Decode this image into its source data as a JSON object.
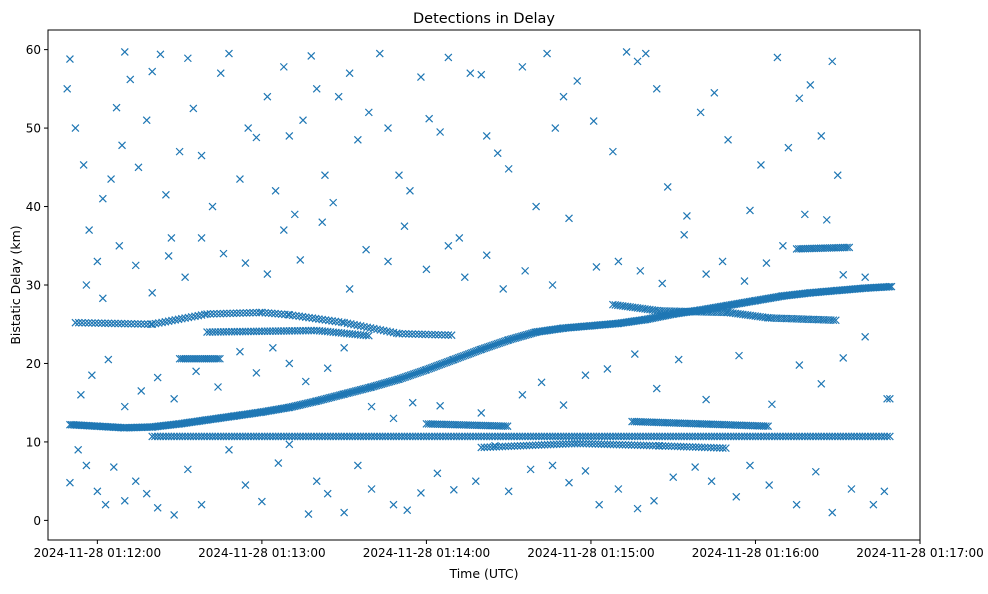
{
  "chart_data": {
    "type": "scatter",
    "title": "Detections in Delay",
    "xlabel": "Time (UTC)",
    "ylabel": "Bistatic Delay (km)",
    "x_units": "seconds after 2024-11-28 01:12:00",
    "xlim": [
      -18,
      300
    ],
    "ylim": [
      -2.5,
      62.5
    ],
    "marker": "x",
    "color": "#1f77b4",
    "grid": false,
    "xticks": [
      {
        "value": 0,
        "label": "2024-11-28 01:12:00"
      },
      {
        "value": 60,
        "label": "2024-11-28 01:13:00"
      },
      {
        "value": 120,
        "label": "2024-11-28 01:14:00"
      },
      {
        "value": 180,
        "label": "2024-11-28 01:15:00"
      },
      {
        "value": 240,
        "label": "2024-11-28 01:16:00"
      },
      {
        "value": 300,
        "label": "2024-11-28 01:17:00"
      }
    ],
    "yticks": [
      0,
      10,
      20,
      30,
      40,
      50,
      60
    ],
    "tracks": [
      {
        "name": "rising-track",
        "step": 0.6,
        "points": [
          [
            -10,
            12.2
          ],
          [
            0,
            12
          ],
          [
            10,
            11.8
          ],
          [
            20,
            11.9
          ],
          [
            30,
            12.3
          ],
          [
            40,
            12.8
          ],
          [
            50,
            13.3
          ],
          [
            60,
            13.8
          ],
          [
            70,
            14.4
          ],
          [
            80,
            15.2
          ],
          [
            90,
            16.1
          ],
          [
            100,
            17
          ],
          [
            110,
            18
          ],
          [
            120,
            19.2
          ],
          [
            130,
            20.5
          ],
          [
            140,
            21.8
          ],
          [
            150,
            23
          ],
          [
            160,
            24
          ],
          [
            170,
            24.5
          ],
          [
            180,
            24.8
          ],
          [
            190,
            25.1
          ],
          [
            200,
            25.6
          ],
          [
            210,
            26.3
          ],
          [
            220,
            26.8
          ],
          [
            230,
            27.4
          ],
          [
            240,
            28
          ],
          [
            250,
            28.6
          ],
          [
            260,
            29
          ],
          [
            270,
            29.3
          ],
          [
            280,
            29.6
          ],
          [
            290,
            29.8
          ]
        ]
      },
      {
        "name": "track-25km",
        "step": 1.2,
        "points": [
          [
            -8,
            25.2
          ],
          [
            20,
            25
          ],
          [
            40,
            26.3
          ],
          [
            60,
            26.5
          ],
          [
            70,
            26.2
          ],
          [
            90,
            25.2
          ],
          [
            110,
            23.8
          ],
          [
            130,
            23.6
          ]
        ]
      },
      {
        "name": "track-10.7km",
        "step": 1.0,
        "points": [
          [
            20,
            10.7
          ],
          [
            290,
            10.7
          ]
        ]
      },
      {
        "name": "track-12km-a",
        "step": 0.8,
        "points": [
          [
            120,
            12.3
          ],
          [
            150,
            12
          ]
        ]
      },
      {
        "name": "track-12km-b",
        "step": 0.8,
        "points": [
          [
            195,
            12.6
          ],
          [
            245,
            12
          ]
        ]
      },
      {
        "name": "track-26km-late",
        "step": 0.9,
        "points": [
          [
            188,
            27.5
          ],
          [
            205,
            26.7
          ],
          [
            230,
            26.5
          ],
          [
            245,
            25.8
          ],
          [
            270,
            25.5
          ]
        ]
      },
      {
        "name": "track-24km-mid",
        "step": 1.0,
        "points": [
          [
            40,
            24
          ],
          [
            80,
            24.2
          ],
          [
            100,
            23.5
          ]
        ]
      },
      {
        "name": "track-20.5km",
        "step": 0.7,
        "points": [
          [
            30,
            20.6
          ],
          [
            45,
            20.6
          ]
        ]
      },
      {
        "name": "track-34.6km",
        "step": 0.8,
        "points": [
          [
            255,
            34.6
          ],
          [
            275,
            34.8
          ]
        ]
      },
      {
        "name": "track-9.5km",
        "step": 1.1,
        "points": [
          [
            140,
            9.3
          ],
          [
            175,
            9.8
          ],
          [
            205,
            9.5
          ],
          [
            230,
            9.2
          ]
        ]
      }
    ],
    "points": [
      [
        -11,
        55
      ],
      [
        -10,
        58.8
      ],
      [
        -8,
        50
      ],
      [
        -5,
        45.3
      ],
      [
        -3,
        37
      ],
      [
        0,
        33
      ],
      [
        2,
        41
      ],
      [
        5,
        43.5
      ],
      [
        7,
        52.6
      ],
      [
        9,
        47.8
      ],
      [
        10,
        59.7
      ],
      [
        12,
        56.2
      ],
      [
        15,
        45
      ],
      [
        18,
        51
      ],
      [
        20,
        57.2
      ],
      [
        23,
        59.4
      ],
      [
        25,
        41.5
      ],
      [
        27,
        36
      ],
      [
        30,
        47
      ],
      [
        33,
        58.9
      ],
      [
        35,
        52.5
      ],
      [
        38,
        46.5
      ],
      [
        42,
        40
      ],
      [
        45,
        57
      ],
      [
        48,
        59.5
      ],
      [
        52,
        43.5
      ],
      [
        55,
        50
      ],
      [
        58,
        48.8
      ],
      [
        62,
        54
      ],
      [
        65,
        42
      ],
      [
        68,
        57.8
      ],
      [
        70,
        49
      ],
      [
        72,
        39
      ],
      [
        75,
        51
      ],
      [
        78,
        59.2
      ],
      [
        80,
        55
      ],
      [
        83,
        44
      ],
      [
        86,
        40.5
      ],
      [
        88,
        54
      ],
      [
        92,
        57
      ],
      [
        95,
        48.5
      ],
      [
        99,
        52
      ],
      [
        103,
        59.5
      ],
      [
        106,
        50
      ],
      [
        110,
        44
      ],
      [
        114,
        42
      ],
      [
        118,
        56.5
      ],
      [
        121,
        51.2
      ],
      [
        125,
        49.5
      ],
      [
        128,
        59
      ],
      [
        132,
        36
      ],
      [
        136,
        57
      ],
      [
        140,
        56.8
      ],
      [
        142,
        49
      ],
      [
        146,
        46.8
      ],
      [
        150,
        44.8
      ],
      [
        155,
        57.8
      ],
      [
        160,
        40
      ],
      [
        164,
        59.5
      ],
      [
        167,
        50
      ],
      [
        170,
        54
      ],
      [
        175,
        56
      ],
      [
        181,
        50.9
      ],
      [
        188,
        47
      ],
      [
        193,
        59.7
      ],
      [
        197,
        58.5
      ],
      [
        200,
        59.5
      ],
      [
        204,
        55
      ],
      [
        208,
        42.5
      ],
      [
        215,
        38.8
      ],
      [
        220,
        52
      ],
      [
        225,
        54.5
      ],
      [
        230,
        48.5
      ],
      [
        238,
        39.5
      ],
      [
        242,
        45.3
      ],
      [
        248,
        59
      ],
      [
        252,
        47.5
      ],
      [
        256,
        53.8
      ],
      [
        260,
        55.5
      ],
      [
        264,
        49
      ],
      [
        268,
        58.5
      ],
      [
        270,
        44
      ],
      [
        -10,
        4.8
      ],
      [
        -7,
        9
      ],
      [
        -4,
        7
      ],
      [
        0,
        3.7
      ],
      [
        3,
        2
      ],
      [
        6,
        6.8
      ],
      [
        10,
        2.5
      ],
      [
        14,
        5
      ],
      [
        18,
        3.4
      ],
      [
        22,
        1.6
      ],
      [
        28,
        0.7
      ],
      [
        33,
        6.5
      ],
      [
        38,
        2
      ],
      [
        48,
        9
      ],
      [
        54,
        4.5
      ],
      [
        60,
        2.4
      ],
      [
        66,
        7.3
      ],
      [
        70,
        9.7
      ],
      [
        77,
        0.8
      ],
      [
        80,
        5
      ],
      [
        84,
        3.4
      ],
      [
        90,
        1
      ],
      [
        95,
        7
      ],
      [
        100,
        4
      ],
      [
        108,
        2
      ],
      [
        113,
        1.3
      ],
      [
        118,
        3.5
      ],
      [
        124,
        6
      ],
      [
        130,
        3.9
      ],
      [
        138,
        5
      ],
      [
        145,
        9.5
      ],
      [
        150,
        3.7
      ],
      [
        158,
        6.5
      ],
      [
        166,
        7
      ],
      [
        172,
        4.8
      ],
      [
        178,
        6.3
      ],
      [
        183,
        2
      ],
      [
        190,
        4
      ],
      [
        197,
        1.5
      ],
      [
        203,
        2.5
      ],
      [
        210,
        5.5
      ],
      [
        218,
        6.8
      ],
      [
        224,
        5
      ],
      [
        233,
        3
      ],
      [
        238,
        7
      ],
      [
        245,
        4.5
      ],
      [
        255,
        2
      ],
      [
        262,
        6.2
      ],
      [
        268,
        1
      ],
      [
        275,
        4
      ],
      [
        283,
        2
      ],
      [
        287,
        3.7
      ],
      [
        -6,
        16
      ],
      [
        -2,
        18.5
      ],
      [
        4,
        20.5
      ],
      [
        10,
        14.5
      ],
      [
        16,
        16.5
      ],
      [
        22,
        18.2
      ],
      [
        28,
        15.5
      ],
      [
        36,
        19
      ],
      [
        44,
        17
      ],
      [
        52,
        21.5
      ],
      [
        58,
        18.8
      ],
      [
        64,
        22
      ],
      [
        70,
        20
      ],
      [
        76,
        17.7
      ],
      [
        84,
        19.4
      ],
      [
        90,
        22
      ],
      [
        100,
        14.5
      ],
      [
        108,
        13
      ],
      [
        115,
        15
      ],
      [
        125,
        14.6
      ],
      [
        140,
        13.7
      ],
      [
        155,
        16
      ],
      [
        162,
        17.6
      ],
      [
        170,
        14.7
      ],
      [
        178,
        18.5
      ],
      [
        186,
        19.3
      ],
      [
        196,
        21.2
      ],
      [
        204,
        16.8
      ],
      [
        212,
        20.5
      ],
      [
        222,
        15.4
      ],
      [
        234,
        21
      ],
      [
        246,
        14.8
      ],
      [
        256,
        19.8
      ],
      [
        264,
        17.4
      ],
      [
        272,
        20.7
      ],
      [
        280,
        23.4
      ],
      [
        288,
        15.5
      ],
      [
        289,
        15.5
      ],
      [
        -4,
        30
      ],
      [
        2,
        28.3
      ],
      [
        8,
        35
      ],
      [
        14,
        32.5
      ],
      [
        20,
        29
      ],
      [
        26,
        33.7
      ],
      [
        32,
        31
      ],
      [
        38,
        36
      ],
      [
        46,
        34
      ],
      [
        54,
        32.8
      ],
      [
        62,
        31.4
      ],
      [
        68,
        37
      ],
      [
        74,
        33.2
      ],
      [
        82,
        38
      ],
      [
        92,
        29.5
      ],
      [
        98,
        34.5
      ],
      [
        106,
        33
      ],
      [
        112,
        37.5
      ],
      [
        120,
        32
      ],
      [
        128,
        35
      ],
      [
        134,
        31
      ],
      [
        142,
        33.8
      ],
      [
        148,
        29.5
      ],
      [
        156,
        31.8
      ],
      [
        166,
        30
      ],
      [
        172,
        38.5
      ],
      [
        182,
        32.3
      ],
      [
        190,
        33
      ],
      [
        198,
        31.8
      ],
      [
        206,
        30.2
      ],
      [
        214,
        36.4
      ],
      [
        222,
        31.4
      ],
      [
        228,
        33
      ],
      [
        236,
        30.5
      ],
      [
        244,
        32.8
      ],
      [
        250,
        35
      ],
      [
        258,
        39
      ],
      [
        266,
        38.3
      ],
      [
        272,
        31.3
      ],
      [
        280,
        31
      ]
    ]
  }
}
